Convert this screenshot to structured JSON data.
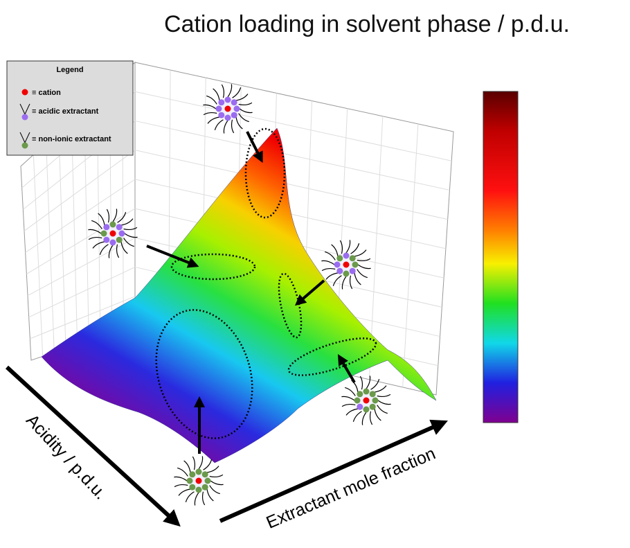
{
  "title": "Cation loading in solvent phase / p.d.u.",
  "legend": {
    "title": "Legend",
    "items": [
      "≡ cation",
      "≡ acidic extractant",
      "≡ non-ionic extractant"
    ]
  },
  "axes": {
    "x_label": "Extractant mole fraction",
    "y_label": "Acidity / p.d.u."
  }
}
